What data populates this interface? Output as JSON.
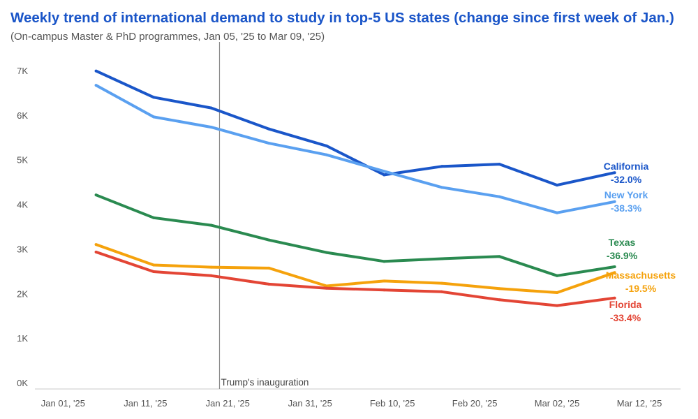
{
  "chart_data": {
    "type": "line",
    "title": "Weekly trend of international demand to study in top-5 US states (change since first week of Jan.)",
    "subtitle": "(On-campus Master & PhD programmes, Jan 05, '25 to Mar 09, '25)",
    "x": [
      "2025-01-05",
      "2025-01-12",
      "2025-01-19",
      "2025-01-26",
      "2025-02-02",
      "2025-02-09",
      "2025-02-16",
      "2025-02-23",
      "2025-03-02",
      "2025-03-09"
    ],
    "x_tick_labels": [
      "Jan 01, '25",
      "Jan 11, '25",
      "Jan 21, '25",
      "Jan 31, '25",
      "Feb 10, '25",
      "Feb 20, '25",
      "Mar 02, '25",
      "Mar 12, '25"
    ],
    "x_ticks": [
      "2025-01-01",
      "2025-01-11",
      "2025-01-21",
      "2025-01-31",
      "2025-02-10",
      "2025-02-20",
      "2025-03-02",
      "2025-03-12"
    ],
    "xlim": [
      "2024-12-29",
      "2025-03-17"
    ],
    "ylim": [
      0,
      7500
    ],
    "y_ticks": [
      0,
      1000,
      2000,
      3000,
      4000,
      5000,
      6000,
      7000
    ],
    "y_tick_labels": [
      "0K",
      "1K",
      "2K",
      "3K",
      "4K",
      "5K",
      "6K",
      "7K"
    ],
    "grid": false,
    "series": [
      {
        "name": "California",
        "change": "-32.0%",
        "color": "#1a56c9",
        "values": [
          7130,
          6540,
          6300,
          5830,
          5450,
          4800,
          4990,
          5040,
          4570,
          4850
        ]
      },
      {
        "name": "New York",
        "change": "-38.3%",
        "color": "#5aa0f0",
        "values": [
          6810,
          6100,
          5870,
          5510,
          5250,
          4880,
          4520,
          4310,
          3950,
          4200
        ]
      },
      {
        "name": "Texas",
        "change": "-36.9%",
        "color": "#2a8a50",
        "values": [
          4350,
          3840,
          3670,
          3340,
          3060,
          2860,
          2920,
          2970,
          2540,
          2740
        ]
      },
      {
        "name": "Massachusetts",
        "change": "-19.5%",
        "color": "#f5a20c",
        "values": [
          3240,
          2780,
          2730,
          2710,
          2310,
          2420,
          2370,
          2250,
          2160,
          2610
        ]
      },
      {
        "name": "Florida",
        "change": "-33.4%",
        "color": "#e34535",
        "values": [
          3070,
          2630,
          2540,
          2350,
          2260,
          2220,
          2180,
          2000,
          1870,
          2040
        ]
      }
    ],
    "annotations": [
      {
        "x": "2025-01-20",
        "text": "Trump's inauguration"
      }
    ]
  }
}
